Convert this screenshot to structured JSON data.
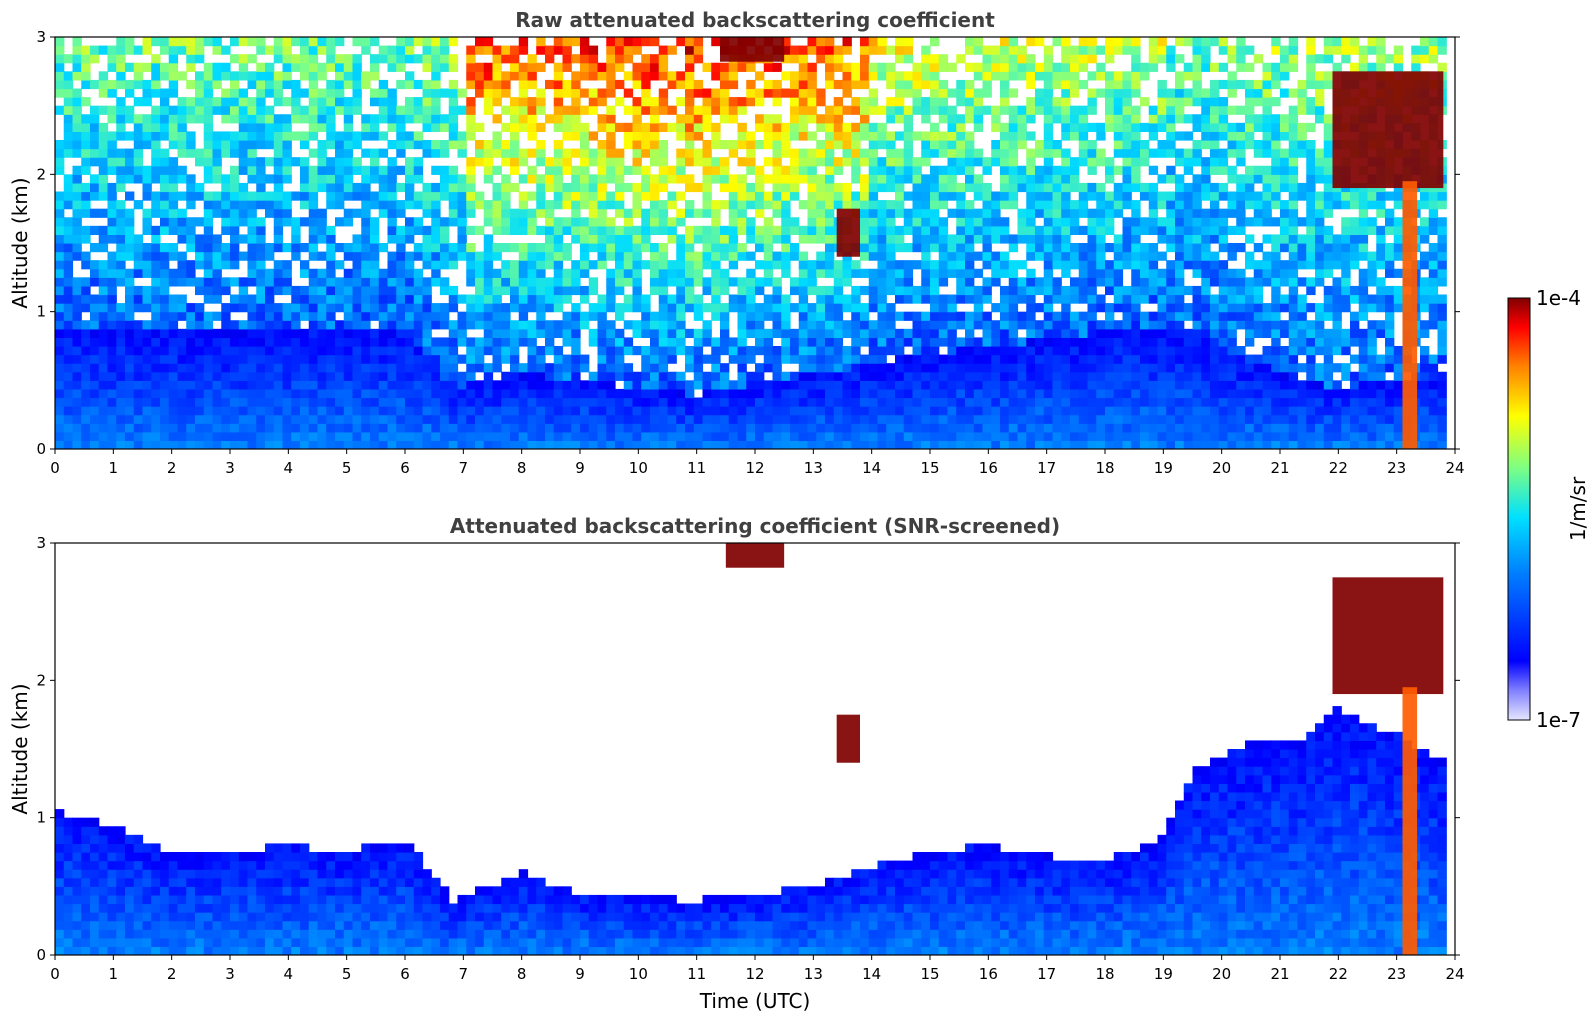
{
  "chart_data": [
    {
      "type": "heatmap",
      "title": "Raw attenuated backscattering coefficient",
      "xlabel": "",
      "ylabel": "Altitude (km)",
      "xlim": [
        0,
        24
      ],
      "ylim": [
        0,
        3
      ],
      "x_ticks": [
        "0",
        "1",
        "2",
        "3",
        "4",
        "5",
        "6",
        "7",
        "8",
        "9",
        "10",
        "11",
        "12",
        "13",
        "14",
        "15",
        "16",
        "17",
        "18",
        "19",
        "20",
        "21",
        "22",
        "23",
        "24"
      ],
      "y_ticks": [
        "0",
        "1",
        "2",
        "3"
      ],
      "screened": false,
      "boundary_layer_top_km": [
        [
          0,
          0.9
        ],
        [
          2,
          0.85
        ],
        [
          4,
          0.85
        ],
        [
          6,
          0.9
        ],
        [
          6.8,
          0.45
        ],
        [
          8,
          0.55
        ],
        [
          10,
          0.45
        ],
        [
          11,
          0.4
        ],
        [
          13,
          0.55
        ],
        [
          15,
          0.7
        ],
        [
          16,
          0.75
        ],
        [
          17,
          0.8
        ],
        [
          18,
          0.85
        ],
        [
          19,
          0.9
        ],
        [
          20,
          0.75
        ],
        [
          21,
          0.55
        ],
        [
          22,
          0.45
        ],
        [
          23,
          0.5
        ],
        [
          23.8,
          0.55
        ]
      ],
      "cloud_features": [
        {
          "t0": 11.4,
          "t1": 12.5,
          "z0": 2.82,
          "z1": 3.0,
          "level": 1.0
        },
        {
          "t0": 13.4,
          "t1": 13.8,
          "z0": 1.4,
          "z1": 1.75,
          "level": 1.0
        },
        {
          "t0": 21.9,
          "t1": 23.8,
          "z0": 1.9,
          "z1": 2.75,
          "level": 1.0
        },
        {
          "t0": 23.1,
          "t1": 23.35,
          "z0": 0.0,
          "z1": 1.95,
          "level": 0.85
        }
      ]
    },
    {
      "type": "heatmap",
      "title": "Attenuated backscattering coefficient (SNR-screened)",
      "xlabel": "Time (UTC)",
      "ylabel": "Altitude (km)",
      "xlim": [
        0,
        24
      ],
      "ylim": [
        0,
        3
      ],
      "x_ticks": [
        "0",
        "1",
        "2",
        "3",
        "4",
        "5",
        "6",
        "7",
        "8",
        "9",
        "10",
        "11",
        "12",
        "13",
        "14",
        "15",
        "16",
        "17",
        "18",
        "19",
        "20",
        "21",
        "22",
        "23",
        "24"
      ],
      "y_ticks": [
        "0",
        "1",
        "2",
        "3"
      ],
      "screened": true,
      "boundary_layer_top_km": [
        [
          0,
          1.05
        ],
        [
          1,
          0.95
        ],
        [
          2,
          0.75
        ],
        [
          3,
          0.75
        ],
        [
          4,
          0.8
        ],
        [
          5,
          0.75
        ],
        [
          6,
          0.85
        ],
        [
          6.8,
          0.4
        ],
        [
          8,
          0.6
        ],
        [
          9,
          0.45
        ],
        [
          10,
          0.42
        ],
        [
          11,
          0.4
        ],
        [
          12,
          0.45
        ],
        [
          13,
          0.5
        ],
        [
          14,
          0.65
        ],
        [
          15,
          0.75
        ],
        [
          16,
          0.8
        ],
        [
          17,
          0.72
        ],
        [
          18,
          0.7
        ],
        [
          19,
          0.85
        ],
        [
          19.5,
          1.35
        ],
        [
          20.5,
          1.55
        ],
        [
          21.5,
          1.6
        ],
        [
          22,
          1.8
        ],
        [
          23,
          1.6
        ],
        [
          23.8,
          1.4
        ]
      ],
      "cloud_features": [
        {
          "t0": 11.5,
          "t1": 12.5,
          "z0": 2.82,
          "z1": 3.0,
          "level": 1.0
        },
        {
          "t0": 13.4,
          "t1": 13.8,
          "z0": 1.4,
          "z1": 1.75,
          "level": 1.0
        },
        {
          "t0": 21.9,
          "t1": 23.8,
          "z0": 1.9,
          "z1": 2.75,
          "level": 1.0
        },
        {
          "t0": 23.1,
          "t1": 23.35,
          "z0": 0.0,
          "z1": 1.95,
          "level": 0.85
        }
      ]
    }
  ],
  "colorbar": {
    "label": "1/m/sr",
    "min_label": "1e-7",
    "max_label": "1e-4",
    "colormap": "jet"
  }
}
